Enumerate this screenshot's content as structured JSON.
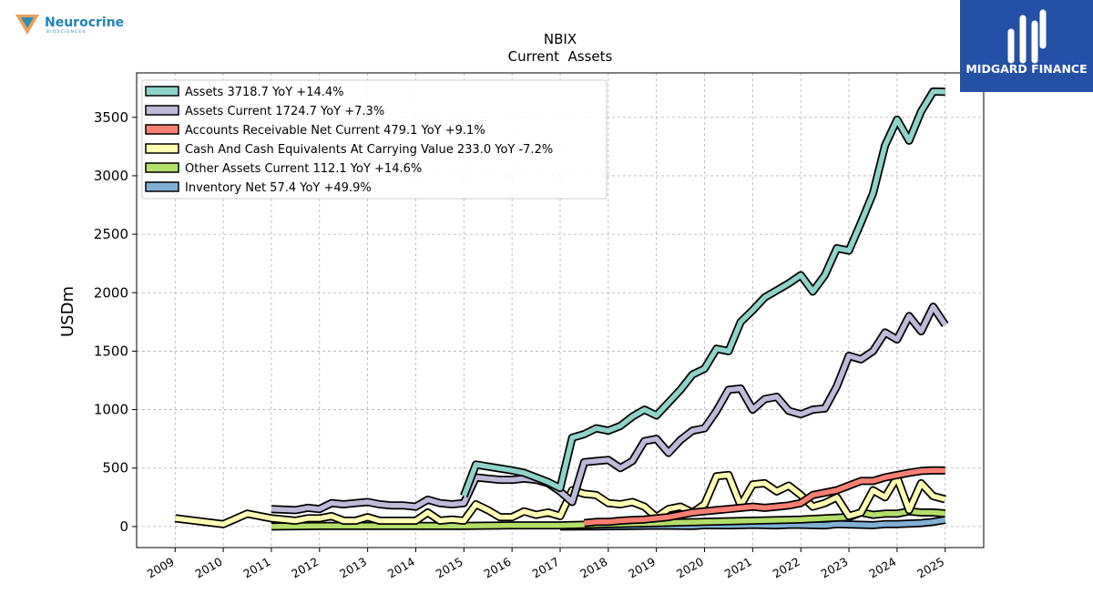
{
  "company_logo": {
    "name": "Neurocrine",
    "tagline": "BIOSCIENCES"
  },
  "brand_logo": {
    "name": "MIDGARD FINANCE",
    "color": "#2451a6"
  },
  "chart_data": {
    "type": "line",
    "title": "NBIX",
    "subtitle": "Current  Assets",
    "xlabel": "",
    "ylabel": "USDm",
    "xlim": [
      2008.2,
      2025.8
    ],
    "ylim": [
      -180,
      3880
    ],
    "x_ticks": [
      2009,
      2010,
      2011,
      2012,
      2013,
      2014,
      2015,
      2016,
      2017,
      2018,
      2019,
      2020,
      2021,
      2022,
      2023,
      2024,
      2025
    ],
    "x_tick_labels": [
      "2009",
      "2010",
      "2011",
      "2012",
      "2013",
      "2014",
      "2015",
      "2016",
      "2017",
      "2018",
      "2019",
      "2020",
      "2021",
      "2022",
      "2023",
      "2024",
      "2025"
    ],
    "y_ticks": [
      0,
      500,
      1000,
      1500,
      2000,
      2500,
      3000,
      3500
    ],
    "y_tick_labels": [
      "0",
      "500",
      "1000",
      "1500",
      "2000",
      "2500",
      "3000",
      "3500"
    ],
    "grid": true,
    "legend_position": "top-left",
    "series": [
      {
        "name": "Assets",
        "legend": "Assets  3718.7 YoY +14.4%",
        "color": "#8dd3c7",
        "x": [
          2015.0,
          2015.25,
          2016.0,
          2016.25,
          2016.75,
          2017.0,
          2017.25,
          2017.5,
          2017.75,
          2018.0,
          2018.25,
          2018.5,
          2018.75,
          2019.0,
          2019.25,
          2019.5,
          2019.75,
          2020.0,
          2020.25,
          2020.5,
          2020.75,
          2021.0,
          2021.25,
          2021.5,
          2021.75,
          2022.0,
          2022.25,
          2022.5,
          2022.75,
          2023.0,
          2023.25,
          2023.5,
          2023.75,
          2024.0,
          2024.25,
          2024.5,
          2024.75,
          2025.0
        ],
        "y": [
          260,
          530,
          480,
          460,
          380,
          330,
          760,
          790,
          840,
          820,
          860,
          940,
          1000,
          950,
          1060,
          1170,
          1300,
          1350,
          1520,
          1500,
          1750,
          1850,
          1960,
          2020,
          2080,
          2150,
          2010,
          2150,
          2380,
          2360,
          2600,
          2850,
          3260,
          3480,
          3300,
          3550,
          3720,
          3719
        ]
      },
      {
        "name": "Assets Current",
        "legend": "Assets Current  1724.7 YoY +7.3%",
        "color": "#bebada",
        "x": [
          2011.0,
          2011.5,
          2011.75,
          2012.0,
          2012.25,
          2012.5,
          2012.75,
          2013.0,
          2013.25,
          2013.5,
          2013.75,
          2014.0,
          2014.25,
          2014.5,
          2014.75,
          2015.0,
          2015.25,
          2015.5,
          2015.75,
          2016.0,
          2016.25,
          2016.5,
          2016.75,
          2017.0,
          2017.25,
          2017.5,
          2017.75,
          2018.0,
          2018.25,
          2018.5,
          2018.75,
          2019.0,
          2019.25,
          2019.5,
          2019.75,
          2020.0,
          2020.25,
          2020.5,
          2020.75,
          2021.0,
          2021.25,
          2021.5,
          2021.75,
          2022.0,
          2022.25,
          2022.5,
          2022.75,
          2023.0,
          2023.25,
          2023.5,
          2023.75,
          2024.0,
          2024.25,
          2024.5,
          2024.75,
          2025.0
        ],
        "y": [
          150,
          140,
          160,
          150,
          200,
          190,
          200,
          210,
          190,
          180,
          180,
          170,
          230,
          200,
          190,
          200,
          420,
          410,
          400,
          400,
          410,
          400,
          370,
          300,
          210,
          550,
          560,
          570,
          500,
          560,
          730,
          750,
          630,
          740,
          820,
          840,
          990,
          1170,
          1180,
          1000,
          1090,
          1110,
          990,
          960,
          1000,
          1010,
          1200,
          1460,
          1430,
          1500,
          1660,
          1600,
          1800,
          1670,
          1880,
          1725
        ]
      },
      {
        "name": "Accounts Receivable Net Current",
        "legend": "Accounts Receivable Net Current  479.1 YoY +9.1%",
        "color": "#fb8072",
        "x": [
          2017.5,
          2017.75,
          2018.0,
          2018.25,
          2018.5,
          2018.75,
          2019.0,
          2019.25,
          2019.5,
          2019.75,
          2020.0,
          2020.25,
          2020.5,
          2020.75,
          2021.0,
          2021.25,
          2021.5,
          2021.75,
          2022.0,
          2022.25,
          2022.5,
          2022.75,
          2023.0,
          2023.25,
          2023.5,
          2023.75,
          2024.0,
          2024.25,
          2024.5,
          2024.75,
          2025.0
        ],
        "y": [
          30,
          40,
          40,
          50,
          55,
          60,
          70,
          80,
          100,
          120,
          130,
          140,
          150,
          160,
          170,
          160,
          170,
          180,
          200,
          270,
          290,
          310,
          350,
          390,
          390,
          420,
          440,
          460,
          475,
          480,
          479
        ]
      },
      {
        "name": "Cash And Cash Equivalents At Carrying Value",
        "legend": "Cash And Cash Equivalents At Carrying Value  233.0 YoY -7.2%",
        "color": "#ffffb3",
        "x": [
          2009.0,
          2010.0,
          2010.5,
          2011.0,
          2011.5,
          2011.75,
          2012.0,
          2012.25,
          2012.5,
          2012.75,
          2013.0,
          2013.25,
          2013.5,
          2013.75,
          2014.0,
          2014.25,
          2014.5,
          2014.75,
          2015.0,
          2015.25,
          2015.5,
          2015.75,
          2016.0,
          2016.25,
          2016.5,
          2016.75,
          2017.0,
          2017.25,
          2017.5,
          2017.75,
          2018.0,
          2018.25,
          2018.5,
          2018.75,
          2019.0,
          2019.25,
          2019.5,
          2019.75,
          2020.0,
          2020.25,
          2020.5,
          2020.75,
          2021.0,
          2021.25,
          2021.5,
          2021.75,
          2022.0,
          2022.25,
          2022.5,
          2022.75,
          2023.0,
          2023.25,
          2023.5,
          2023.75,
          2024.0,
          2024.25,
          2024.5,
          2024.75,
          2025.0
        ],
        "y": [
          70,
          20,
          110,
          70,
          50,
          70,
          70,
          90,
          50,
          50,
          80,
          50,
          50,
          50,
          50,
          120,
          50,
          60,
          50,
          190,
          140,
          80,
          80,
          130,
          100,
          120,
          90,
          310,
          280,
          270,
          200,
          190,
          210,
          170,
          80,
          150,
          170,
          120,
          190,
          430,
          440,
          180,
          360,
          370,
          300,
          350,
          270,
          170,
          200,
          250,
          90,
          120,
          310,
          250,
          420,
          140,
          370,
          260,
          233
        ]
      },
      {
        "name": "Other Assets Current",
        "legend": "Other Assets Current  112.1 YoY +14.6%",
        "color": "#b3de69",
        "x": [
          2011.0,
          2012.0,
          2013.0,
          2014.0,
          2015.0,
          2016.0,
          2017.0,
          2018.0,
          2019.0,
          2020.0,
          2021.0,
          2022.0,
          2022.5,
          2023.0,
          2023.25,
          2023.5,
          2023.75,
          2024.0,
          2024.25,
          2024.5,
          2024.75,
          2025.0
        ],
        "y": [
          0,
          5,
          5,
          5,
          5,
          10,
          10,
          20,
          30,
          40,
          50,
          60,
          70,
          80,
          120,
          100,
          110,
          110,
          130,
          120,
          120,
          112
        ]
      },
      {
        "name": "Inventory Net",
        "legend": "Inventory Net  57.4 YoY +49.9%",
        "color": "#80b1d3",
        "x": [
          2017.0,
          2018.0,
          2019.0,
          2019.75,
          2020.0,
          2020.5,
          2020.75,
          2021.0,
          2021.5,
          2021.75,
          2022.0,
          2022.5,
          2022.75,
          2023.0,
          2023.5,
          2023.75,
          2024.0,
          2024.5,
          2024.75,
          2025.0
        ],
        "y": [
          0,
          2,
          8,
          5,
          12,
          10,
          12,
          15,
          10,
          15,
          15,
          10,
          20,
          18,
          12,
          20,
          20,
          30,
          40,
          57
        ]
      }
    ]
  }
}
